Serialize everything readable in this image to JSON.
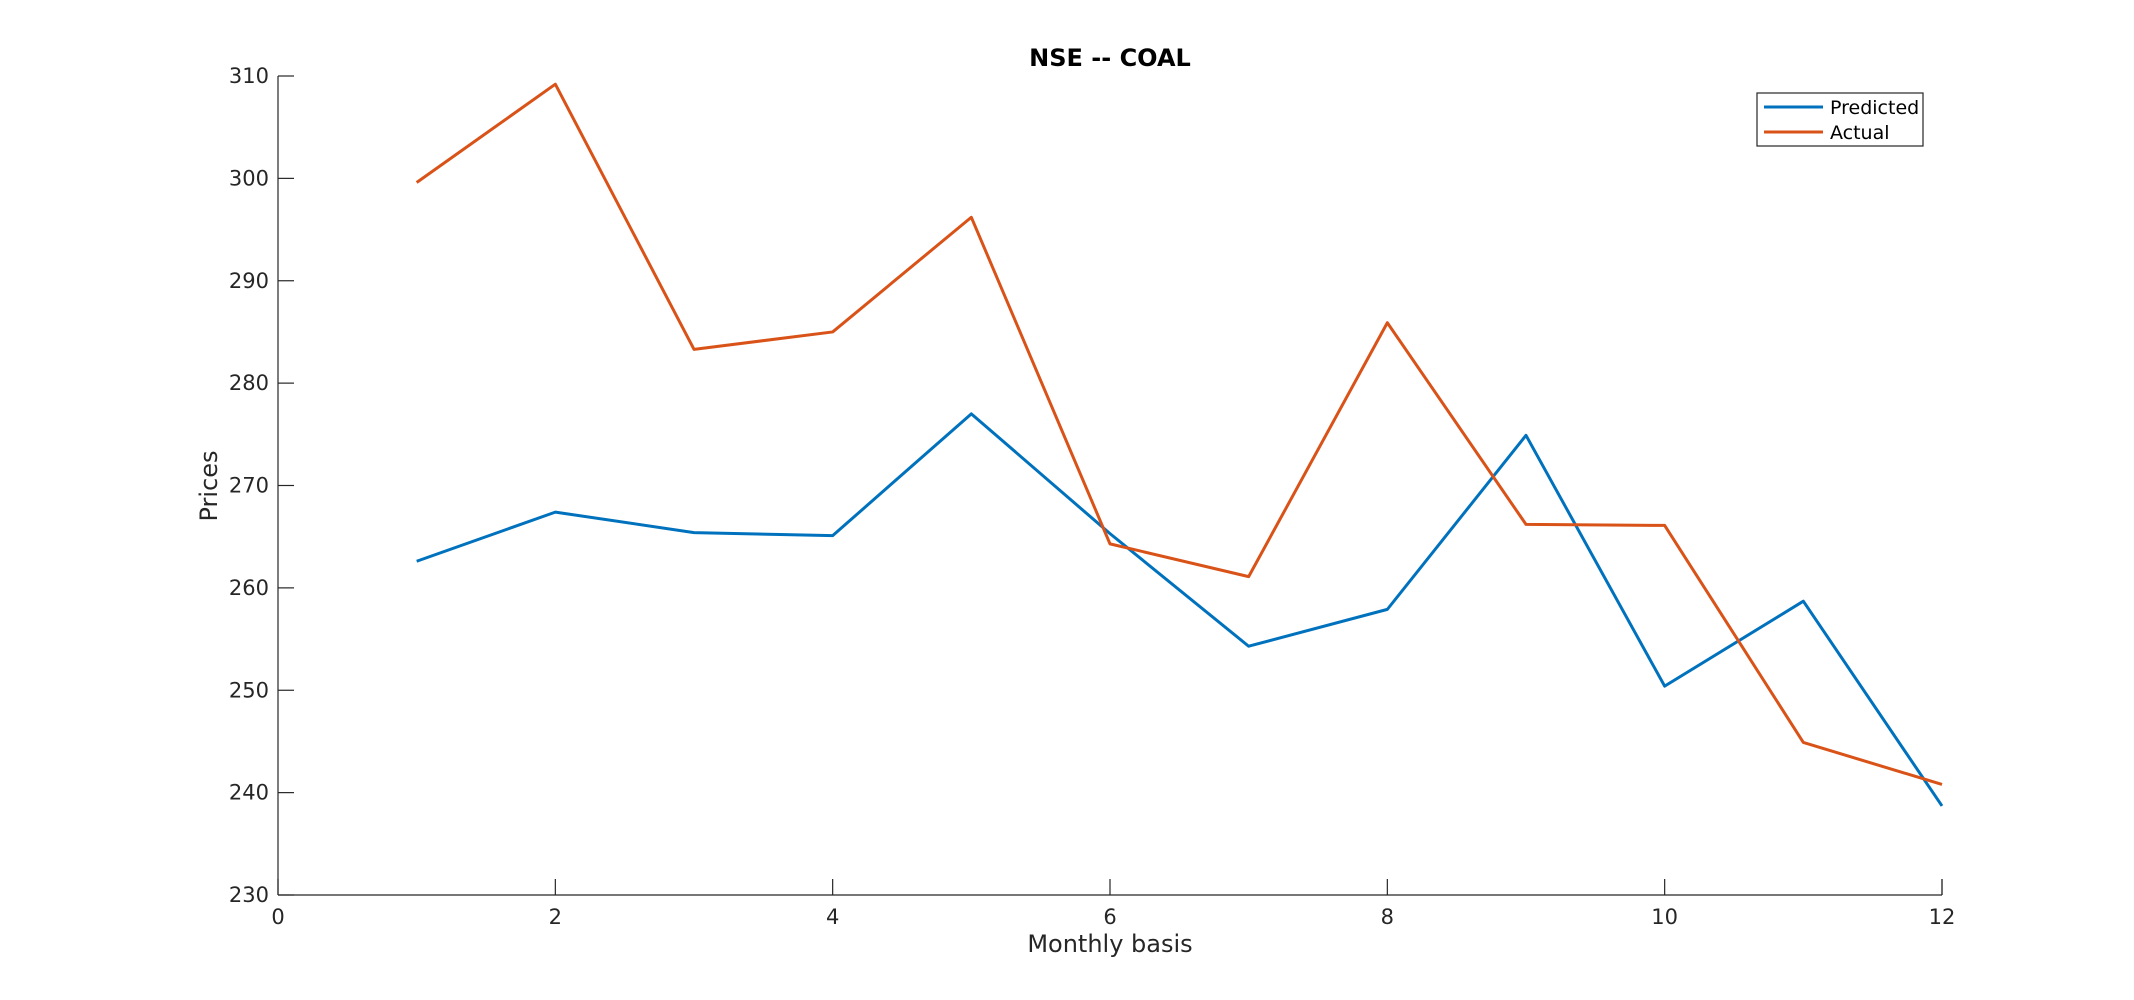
{
  "chart_data": {
    "type": "line",
    "title": "NSE -- COAL",
    "xlabel": "Monthly basis",
    "ylabel": "Prices",
    "xlim": [
      0,
      12
    ],
    "ylim": [
      230,
      310
    ],
    "xticks": [
      0,
      2,
      4,
      6,
      8,
      10,
      12
    ],
    "yticks": [
      230,
      240,
      250,
      260,
      270,
      280,
      290,
      300,
      310
    ],
    "x": [
      1,
      2,
      3,
      4,
      5,
      6,
      7,
      8,
      9,
      10,
      11,
      12
    ],
    "series": [
      {
        "name": "Predicted",
        "color": "#0072BD",
        "values": [
          262.6,
          267.4,
          265.4,
          265.1,
          277.0,
          265.3,
          254.3,
          257.9,
          274.9,
          250.4,
          258.7,
          238.7
        ]
      },
      {
        "name": "Actual",
        "color": "#D95319",
        "values": [
          299.6,
          309.2,
          283.3,
          285.0,
          296.2,
          264.3,
          261.1,
          285.9,
          266.2,
          266.1,
          244.9,
          240.8
        ]
      }
    ],
    "grid": false,
    "legend": "top-right"
  }
}
